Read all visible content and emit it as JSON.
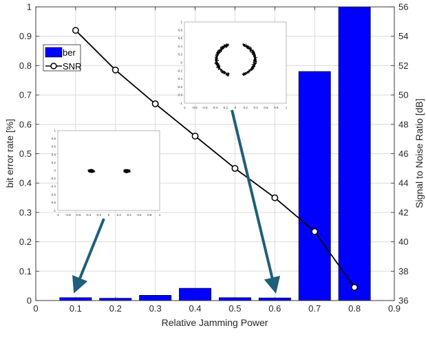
{
  "chart_data": {
    "type": "bar",
    "xlabel": "Relative Jamming Power",
    "ylabel_left": "bit error rate [%]",
    "ylabel_right": "Signal to Noise Ratio [dB]",
    "xlim": [
      0,
      0.9
    ],
    "ylim_left": [
      0,
      1
    ],
    "ylim_right": [
      36,
      56
    ],
    "grid": true,
    "legend_position": "upper-left",
    "x_ticks": [
      "0",
      "0.1",
      "0.2",
      "0.3",
      "0.4",
      "0.5",
      "0.6",
      "0.7",
      "0.8",
      "0.9"
    ],
    "y_left_ticks": [
      "0",
      "0.1",
      "0.2",
      "0.3",
      "0.4",
      "0.5",
      "0.6",
      "0.7",
      "0.8",
      "0.9",
      "1"
    ],
    "y_right_ticks": [
      "36",
      "38",
      "40",
      "42",
      "44",
      "46",
      "48",
      "50",
      "52",
      "54",
      "56"
    ],
    "series": [
      {
        "name": "ber",
        "kind": "bar",
        "axis": "left",
        "color": "#0000ff",
        "x": [
          0.1,
          0.2,
          0.3,
          0.4,
          0.5,
          0.6,
          0.7,
          0.8
        ],
        "values": [
          0.01,
          0.008,
          0.018,
          0.042,
          0.01,
          0.009,
          0.78,
          1.0
        ]
      },
      {
        "name": "SNR",
        "kind": "line",
        "axis": "right",
        "color": "#000000",
        "marker": "circle",
        "x": [
          0.1,
          0.2,
          0.3,
          0.4,
          0.5,
          0.6,
          0.7,
          0.8
        ],
        "values": [
          54.4,
          51.7,
          49.4,
          47.2,
          45.0,
          43.0,
          40.7,
          36.9
        ]
      }
    ],
    "annotations": [
      {
        "kind": "scatter-inset",
        "points_to": 0.6,
        "xlim": [
          -1,
          1
        ],
        "ylim": [
          -1,
          1
        ],
        "x_ticks": [
          "-1",
          "-0.8",
          "-0.6",
          "-0.4",
          "-0.2",
          "0",
          "0.2",
          "0.4",
          "0.6",
          "0.8",
          "1"
        ],
        "y_ticks": [
          "1",
          "0.8",
          "0.6",
          "0.4",
          "0.2",
          "0",
          "-0.2",
          "-0.4",
          "-0.6",
          "-0.8",
          "-1"
        ],
        "clusters": [
          [
            -0.3,
            0.1
          ],
          [
            0.3,
            0.1
          ]
        ],
        "cluster_shape": "arc"
      },
      {
        "kind": "scatter-inset",
        "points_to": 0.1,
        "xlim": [
          -1,
          1
        ],
        "ylim": [
          -1,
          1
        ],
        "x_ticks": [
          "-1",
          "-0.8",
          "-0.6",
          "-0.4",
          "-0.2",
          "0",
          "0.2",
          "0.4",
          "0.6",
          "0.8",
          "1"
        ],
        "y_ticks": [
          "1",
          "0.8",
          "0.6",
          "0.4",
          "0.2",
          "0",
          "-0.2",
          "-0.4",
          "-0.6",
          "-0.8",
          "-1"
        ],
        "clusters": [
          [
            -0.35,
            0.0
          ],
          [
            0.35,
            0.0
          ]
        ],
        "cluster_shape": "blob"
      }
    ],
    "arrow_color": "#1f5f7a"
  }
}
